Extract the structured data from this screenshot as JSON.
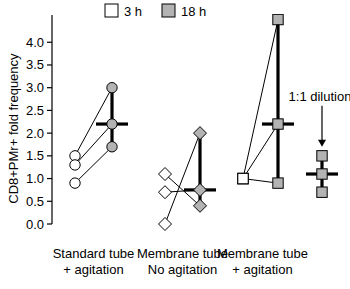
{
  "chart_data": {
    "type": "scatter",
    "y_label": "CD8+PMr+ fold frequency",
    "categories": [
      "Standard tube\n+ agitation",
      "Membrane tube\nNo agitation",
      "Membrane tube\n+ agitation"
    ],
    "series": [
      {
        "name": "3 h",
        "color": "#ffffff",
        "values": [
          [
            1.5,
            1.3,
            0.9
          ],
          [
            1.1,
            0.7,
            0.0
          ],
          [
            1.0,
            1.0,
            1.0
          ]
        ]
      },
      {
        "name": "18 h",
        "color": "#b3b3b3",
        "values": [
          [
            3.0,
            2.2,
            1.7
          ],
          [
            0.4,
            0.75,
            2.0
          ],
          [
            4.5,
            2.2,
            0.9
          ]
        ],
        "medians": [
          2.2,
          0.75,
          2.2
        ]
      }
    ],
    "annotations": [
      {
        "text": "1:1 dilution",
        "category": 2,
        "values": [
          1.5,
          1.1,
          0.7
        ],
        "median": 1.1,
        "color": "#b3b3b3"
      }
    ],
    "ylim": [
      0,
      4.6
    ],
    "yticks": [
      {
        "value": 0,
        "label": "0.0"
      },
      {
        "value": 0.5,
        "label": "0.5"
      },
      {
        "value": 1,
        "label": "1.0"
      },
      {
        "value": 1.5,
        "label": "1.5"
      },
      {
        "value": 2,
        "label": "2.0"
      },
      {
        "value": 2.5,
        "label": "2.5"
      },
      {
        "value": 3,
        "label": "3.0"
      },
      {
        "value": 3.5,
        "label": "3.5"
      },
      {
        "value": 4,
        "label": "4.0"
      }
    ],
    "legend": "top",
    "grid": false
  }
}
